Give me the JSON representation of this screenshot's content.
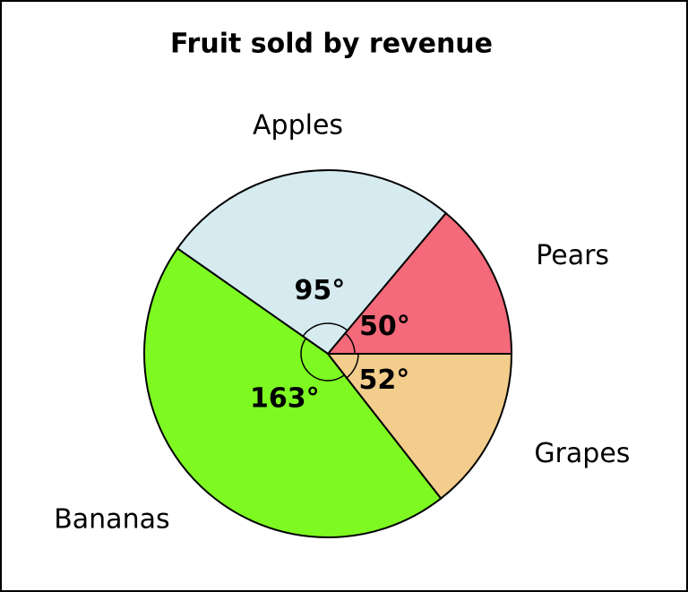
{
  "chart_data": {
    "type": "pie",
    "title": "Fruit sold by revenue",
    "categories": [
      "Pears",
      "Apples",
      "Bananas",
      "Grapes"
    ],
    "values": [
      50,
      95,
      163,
      52
    ],
    "value_labels": [
      "50°",
      "95°",
      "163°",
      "52°"
    ],
    "colors": [
      "#f46a7a",
      "#d5ebf0",
      "#7ef922",
      "#f2cd8c"
    ]
  }
}
